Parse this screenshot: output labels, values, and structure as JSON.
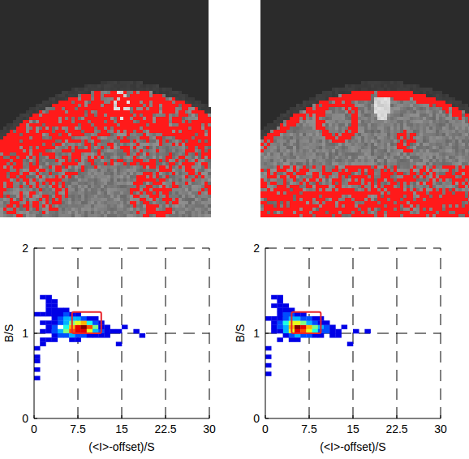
{
  "chart_data": [
    {
      "type": "heatmap",
      "x_label": "(<I>-offset)/S",
      "y_label": "B/S",
      "xlim": [
        0,
        30
      ],
      "ylim": [
        0,
        2
      ],
      "xticks": [
        0,
        7.5,
        15,
        22.5,
        30
      ],
      "yticks": [
        0,
        1,
        2
      ],
      "grid": true,
      "cell_width": 1,
      "cell_height": 0.05,
      "clim": [
        0,
        10
      ],
      "selection": {
        "x": [
          6.5,
          11.5
        ],
        "y": [
          1,
          1.25
        ],
        "color": "#e8242c"
      },
      "cells": [
        [
          5,
          1.05,
          4
        ],
        [
          6,
          1.05,
          7
        ],
        [
          7,
          1.05,
          9
        ],
        [
          8,
          1.05,
          10
        ],
        [
          9,
          1.05,
          8
        ],
        [
          10,
          1.05,
          5
        ],
        [
          4,
          1.0,
          3
        ],
        [
          5,
          1.0,
          5
        ],
        [
          6,
          1.0,
          8
        ],
        [
          7,
          1.0,
          9
        ],
        [
          8,
          1.0,
          9
        ],
        [
          9,
          1.0,
          6
        ],
        [
          10,
          1.0,
          3
        ],
        [
          11,
          1.0,
          2
        ],
        [
          4,
          1.1,
          2
        ],
        [
          5,
          1.1,
          3
        ],
        [
          6,
          1.1,
          5
        ],
        [
          7,
          1.1,
          6
        ],
        [
          8,
          1.1,
          7
        ],
        [
          9,
          1.1,
          4
        ],
        [
          10,
          1.1,
          2
        ],
        [
          3,
          1.15,
          1
        ],
        [
          4,
          1.15,
          2
        ],
        [
          5,
          1.15,
          3
        ],
        [
          6,
          1.15,
          3
        ],
        [
          7,
          1.15,
          3
        ],
        [
          8,
          1.15,
          2
        ],
        [
          9,
          1.15,
          1
        ],
        [
          3,
          0.95,
          1
        ],
        [
          4,
          0.95,
          2
        ],
        [
          5,
          0.95,
          2
        ],
        [
          6,
          0.95,
          3
        ],
        [
          7,
          0.95,
          2
        ],
        [
          8,
          0.95,
          2
        ],
        [
          9,
          0.95,
          1
        ],
        [
          10,
          0.95,
          1
        ],
        [
          2,
          1.2,
          1
        ],
        [
          3,
          1.2,
          1
        ],
        [
          4,
          1.2,
          1
        ],
        [
          5,
          1.2,
          2
        ],
        [
          6,
          1.2,
          1
        ],
        [
          7,
          1.2,
          1
        ],
        [
          2,
          1.25,
          1
        ],
        [
          3,
          1.25,
          1
        ],
        [
          4,
          1.25,
          1
        ],
        [
          5,
          1.25,
          1
        ],
        [
          2,
          1.3,
          1
        ],
        [
          3,
          1.3,
          1
        ],
        [
          2,
          1.35,
          1
        ],
        [
          3,
          1.35,
          1
        ],
        [
          1,
          1.4,
          1
        ],
        [
          2,
          1.4,
          1
        ],
        [
          2,
          0.9,
          1
        ],
        [
          3,
          0.9,
          1
        ],
        [
          6,
          0.9,
          1
        ],
        [
          7,
          0.9,
          1
        ],
        [
          1,
          0.85,
          1
        ],
        [
          0,
          0.8,
          1
        ],
        [
          0,
          0.7,
          1
        ],
        [
          0,
          0.65,
          1
        ],
        [
          0,
          0.55,
          1
        ],
        [
          0,
          0.45,
          1
        ],
        [
          1,
          0.9,
          1
        ],
        [
          1,
          1.0,
          1
        ],
        [
          2,
          1.0,
          1
        ],
        [
          3,
          1.0,
          2
        ],
        [
          11,
          1.05,
          1
        ],
        [
          12,
          1.05,
          1
        ],
        [
          12,
          1.0,
          1
        ],
        [
          13,
          1.0,
          1
        ],
        [
          14,
          1.0,
          1
        ],
        [
          15,
          1.05,
          1
        ],
        [
          17,
          1.0,
          1
        ],
        [
          0,
          1.2,
          1
        ],
        [
          1,
          1.2,
          1
        ],
        [
          1,
          1.1,
          1
        ],
        [
          2,
          1.1,
          1
        ],
        [
          3,
          1.05,
          2
        ],
        [
          3,
          1.1,
          1
        ],
        [
          2,
          1.05,
          1
        ],
        [
          11,
          1.1,
          1
        ],
        [
          10,
          1.15,
          1
        ],
        [
          11,
          0.95,
          1
        ],
        [
          12,
          0.95,
          1
        ],
        [
          14,
          0.85,
          1
        ],
        [
          18,
          0.95,
          1
        ]
      ]
    },
    {
      "type": "heatmap",
      "x_label": "(<I>-offset)/S",
      "y_label": "B/S",
      "xlim": [
        0,
        30
      ],
      "ylim": [
        0,
        2
      ],
      "xticks": [
        0,
        7.5,
        15,
        22.5,
        30
      ],
      "yticks": [
        0,
        1,
        2
      ],
      "grid": true,
      "cell_width": 1,
      "cell_height": 0.05,
      "clim": [
        0,
        10
      ],
      "selection": {
        "x": [
          4.5,
          9.5
        ],
        "y": [
          1,
          1.25
        ],
        "color": "#e8242c"
      },
      "cells": [
        [
          3,
          1.05,
          3
        ],
        [
          4,
          1.05,
          7
        ],
        [
          5,
          1.05,
          10
        ],
        [
          6,
          1.05,
          9
        ],
        [
          7,
          1.05,
          7
        ],
        [
          8,
          1.05,
          5
        ],
        [
          9,
          1.05,
          3
        ],
        [
          10,
          1.05,
          2
        ],
        [
          3,
          1.0,
          3
        ],
        [
          4,
          1.0,
          6
        ],
        [
          5,
          1.0,
          9
        ],
        [
          6,
          1.0,
          8
        ],
        [
          7,
          1.0,
          6
        ],
        [
          8,
          1.0,
          4
        ],
        [
          9,
          1.0,
          2
        ],
        [
          10,
          1.0,
          2
        ],
        [
          11,
          1.0,
          1
        ],
        [
          2,
          1.1,
          2
        ],
        [
          3,
          1.1,
          4
        ],
        [
          4,
          1.1,
          6
        ],
        [
          5,
          1.1,
          6
        ],
        [
          6,
          1.1,
          5
        ],
        [
          7,
          1.1,
          3
        ],
        [
          8,
          1.1,
          2
        ],
        [
          9,
          1.1,
          1
        ],
        [
          2,
          1.15,
          1
        ],
        [
          3,
          1.15,
          2
        ],
        [
          4,
          1.15,
          3
        ],
        [
          5,
          1.15,
          3
        ],
        [
          6,
          1.15,
          2
        ],
        [
          7,
          1.15,
          2
        ],
        [
          8,
          1.15,
          1
        ],
        [
          3,
          0.95,
          1
        ],
        [
          4,
          0.95,
          2
        ],
        [
          5,
          0.95,
          3
        ],
        [
          6,
          0.95,
          2
        ],
        [
          7,
          0.95,
          2
        ],
        [
          8,
          0.95,
          1
        ],
        [
          9,
          0.95,
          1
        ],
        [
          2,
          1.2,
          1
        ],
        [
          3,
          1.2,
          2
        ],
        [
          4,
          1.2,
          2
        ],
        [
          5,
          1.2,
          1
        ],
        [
          6,
          1.2,
          1
        ],
        [
          2,
          1.25,
          1
        ],
        [
          3,
          1.25,
          1
        ],
        [
          4,
          1.25,
          1
        ],
        [
          1,
          1.3,
          1
        ],
        [
          2,
          1.3,
          1
        ],
        [
          3,
          1.3,
          1
        ],
        [
          2,
          1.35,
          1
        ],
        [
          1,
          1.4,
          1
        ],
        [
          2,
          1.4,
          1
        ],
        [
          2,
          0.9,
          1
        ],
        [
          4,
          0.9,
          1
        ],
        [
          5,
          0.9,
          1
        ],
        [
          0,
          0.8,
          1
        ],
        [
          0,
          0.7,
          1
        ],
        [
          0,
          0.6,
          1
        ],
        [
          0,
          0.5,
          1
        ],
        [
          1,
          1.0,
          1
        ],
        [
          2,
          1.0,
          1
        ],
        [
          1,
          1.05,
          1
        ],
        [
          2,
          1.05,
          2
        ],
        [
          11,
          1.05,
          1
        ],
        [
          12,
          1.0,
          1
        ],
        [
          13,
          1.05,
          1
        ],
        [
          15,
          1.0,
          1
        ],
        [
          17,
          1.0,
          1
        ],
        [
          0,
          1.15,
          1
        ],
        [
          1,
          1.15,
          1
        ],
        [
          1,
          1.1,
          1
        ],
        [
          10,
          1.1,
          1
        ],
        [
          11,
          0.95,
          1
        ],
        [
          12,
          0.95,
          1
        ],
        [
          14,
          0.85,
          1
        ],
        [
          9,
          1.15,
          1
        ]
      ]
    }
  ]
}
